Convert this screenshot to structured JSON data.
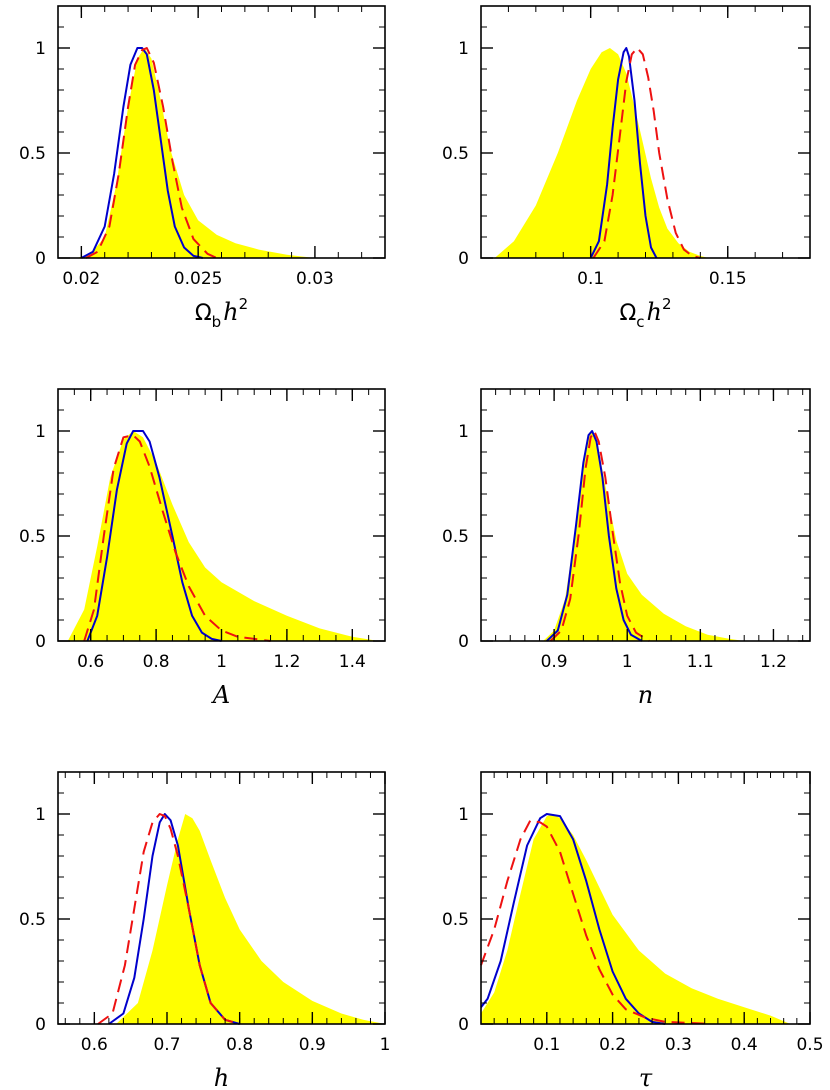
{
  "colors": {
    "fill": "#ffff00",
    "solid_line": "#0000cc",
    "dashed_line": "#ee1111",
    "axis": "#000000"
  },
  "chart_data": [
    {
      "type": "area",
      "xlabel": {
        "main": "Ω",
        "sub": "b",
        "var": "h",
        "sup": "2"
      },
      "xlim": [
        0.019,
        0.033
      ],
      "ylim": [
        0,
        1.2
      ],
      "x_ticks": [
        0.02,
        0.025,
        0.03
      ],
      "x_tick_labels": [
        "0.02",
        "0.025",
        "0.03"
      ],
      "x_minor_step": 0.001,
      "y_ticks": [
        0,
        0.5,
        1
      ],
      "y_tick_labels": [
        "0",
        "0.5",
        "1"
      ],
      "y_minor_step": 0.1,
      "series": [
        {
          "style": "fill",
          "x": [
            0.0198,
            0.0204,
            0.021,
            0.0215,
            0.022,
            0.0224,
            0.0227,
            0.023,
            0.0234,
            0.0238,
            0.0244,
            0.025,
            0.0258,
            0.0266,
            0.0276,
            0.0288,
            0.03
          ],
          "y": [
            0,
            0.02,
            0.1,
            0.35,
            0.72,
            0.95,
            1.0,
            0.95,
            0.75,
            0.52,
            0.3,
            0.18,
            0.11,
            0.07,
            0.04,
            0.015,
            0
          ]
        },
        {
          "style": "solid",
          "x": [
            0.02,
            0.0205,
            0.021,
            0.0214,
            0.0218,
            0.0221,
            0.0224,
            0.0226,
            0.0228,
            0.0231,
            0.0234,
            0.0237,
            0.024,
            0.0244,
            0.0248,
            0.0252
          ],
          "y": [
            0,
            0.03,
            0.15,
            0.4,
            0.72,
            0.92,
            1.0,
            1.0,
            0.97,
            0.8,
            0.56,
            0.32,
            0.15,
            0.05,
            0.01,
            0
          ]
        },
        {
          "style": "dashed",
          "x": [
            0.0202,
            0.0207,
            0.0212,
            0.0216,
            0.022,
            0.0223,
            0.0226,
            0.0228,
            0.0231,
            0.0235,
            0.0239,
            0.0243,
            0.0248,
            0.0254,
            0.0258
          ],
          "y": [
            0,
            0.03,
            0.15,
            0.4,
            0.72,
            0.92,
            0.99,
            1.0,
            0.93,
            0.72,
            0.46,
            0.24,
            0.09,
            0.02,
            0
          ]
        }
      ]
    },
    {
      "type": "area",
      "xlabel": {
        "main": "Ω",
        "sub": "c",
        "var": "h",
        "sup": "2"
      },
      "xlim": [
        0.06,
        0.18
      ],
      "ylim": [
        0,
        1.2
      ],
      "x_ticks": [
        0.1,
        0.15
      ],
      "x_tick_labels": [
        "0.1",
        "0.15"
      ],
      "x_minor_step": 0.01,
      "y_ticks": [
        0,
        0.5,
        1
      ],
      "y_tick_labels": [
        "0",
        "0.5",
        "1"
      ],
      "y_minor_step": 0.1,
      "series": [
        {
          "style": "fill",
          "x": [
            0.065,
            0.072,
            0.08,
            0.088,
            0.095,
            0.1,
            0.104,
            0.107,
            0.11,
            0.113,
            0.116,
            0.119,
            0.122,
            0.125,
            0.128,
            0.132,
            0.136,
            0.14,
            0.143
          ],
          "y": [
            0,
            0.08,
            0.25,
            0.5,
            0.75,
            0.9,
            0.98,
            1.0,
            0.97,
            0.88,
            0.72,
            0.55,
            0.38,
            0.24,
            0.14,
            0.07,
            0.03,
            0.01,
            0
          ]
        },
        {
          "style": "solid",
          "x": [
            0.1,
            0.103,
            0.106,
            0.108,
            0.11,
            0.112,
            0.113,
            0.114,
            0.116,
            0.118,
            0.12,
            0.122,
            0.124
          ],
          "y": [
            0,
            0.08,
            0.35,
            0.62,
            0.85,
            0.98,
            1.0,
            0.96,
            0.75,
            0.45,
            0.2,
            0.05,
            0
          ]
        },
        {
          "style": "dashed",
          "x": [
            0.101,
            0.105,
            0.108,
            0.111,
            0.113,
            0.115,
            0.117,
            0.119,
            0.121,
            0.123,
            0.125,
            0.128,
            0.131,
            0.134,
            0.137,
            0.14
          ],
          "y": [
            0,
            0.08,
            0.3,
            0.62,
            0.84,
            0.97,
            1.0,
            0.97,
            0.86,
            0.7,
            0.5,
            0.28,
            0.12,
            0.04,
            0.01,
            0
          ]
        }
      ]
    },
    {
      "type": "area",
      "xlabel": {
        "var": "A"
      },
      "xlim": [
        0.5,
        1.5
      ],
      "ylim": [
        0,
        1.2
      ],
      "x_ticks": [
        0.6,
        0.8,
        1,
        1.2,
        1.4
      ],
      "x_tick_labels": [
        "0.6",
        "0.8",
        "1",
        "1.2",
        "1.4"
      ],
      "x_minor_step": 0.05,
      "y_ticks": [
        0,
        0.5,
        1
      ],
      "y_tick_labels": [
        "0",
        "0.5",
        "1"
      ],
      "y_minor_step": 0.1,
      "series": [
        {
          "style": "fill",
          "x": [
            0.53,
            0.58,
            0.62,
            0.66,
            0.7,
            0.73,
            0.76,
            0.8,
            0.85,
            0.9,
            0.95,
            1.0,
            1.1,
            1.2,
            1.3,
            1.4,
            1.48
          ],
          "y": [
            0,
            0.15,
            0.45,
            0.78,
            0.96,
            1.0,
            0.97,
            0.85,
            0.65,
            0.47,
            0.35,
            0.28,
            0.19,
            0.12,
            0.06,
            0.02,
            0
          ]
        },
        {
          "style": "solid",
          "x": [
            0.59,
            0.62,
            0.65,
            0.68,
            0.71,
            0.73,
            0.76,
            0.78,
            0.81,
            0.85,
            0.88,
            0.91,
            0.94,
            0.97,
            1.0
          ],
          "y": [
            0,
            0.12,
            0.4,
            0.72,
            0.94,
            1.0,
            1.0,
            0.95,
            0.78,
            0.5,
            0.28,
            0.12,
            0.04,
            0.01,
            0
          ]
        },
        {
          "style": "dashed",
          "x": [
            0.58,
            0.61,
            0.64,
            0.67,
            0.7,
            0.73,
            0.75,
            0.78,
            0.82,
            0.86,
            0.9,
            0.95,
            1.0,
            1.05,
            1.1,
            1.15
          ],
          "y": [
            0,
            0.15,
            0.5,
            0.82,
            0.97,
            0.98,
            0.95,
            0.83,
            0.62,
            0.42,
            0.26,
            0.12,
            0.05,
            0.02,
            0.01,
            0
          ]
        }
      ]
    },
    {
      "type": "area",
      "xlabel": {
        "var": "n"
      },
      "xlim": [
        0.8,
        1.25
      ],
      "ylim": [
        0,
        1.2
      ],
      "x_ticks": [
        0.9,
        1,
        1.1,
        1.2
      ],
      "x_tick_labels": [
        "0.9",
        "1",
        "1.1",
        "1.2"
      ],
      "x_minor_step": 0.02,
      "y_ticks": [
        0,
        0.5,
        1
      ],
      "y_tick_labels": [
        "0",
        "0.5",
        "1"
      ],
      "y_minor_step": 0.1,
      "series": [
        {
          "style": "fill",
          "x": [
            0.885,
            0.9,
            0.915,
            0.93,
            0.94,
            0.948,
            0.953,
            0.96,
            0.97,
            0.985,
            1.0,
            1.02,
            1.05,
            1.08,
            1.11,
            1.14,
            1.16
          ],
          "y": [
            0,
            0.05,
            0.2,
            0.55,
            0.85,
            0.98,
            1.0,
            0.93,
            0.74,
            0.48,
            0.32,
            0.22,
            0.13,
            0.07,
            0.03,
            0.01,
            0
          ]
        },
        {
          "style": "solid",
          "x": [
            0.89,
            0.905,
            0.918,
            0.93,
            0.94,
            0.947,
            0.952,
            0.958,
            0.966,
            0.975,
            0.985,
            0.995,
            1.005,
            1.02
          ],
          "y": [
            0,
            0.05,
            0.22,
            0.55,
            0.85,
            0.98,
            1.0,
            0.95,
            0.78,
            0.5,
            0.25,
            0.1,
            0.03,
            0
          ]
        },
        {
          "style": "dashed",
          "x": [
            0.895,
            0.91,
            0.922,
            0.934,
            0.943,
            0.95,
            0.955,
            0.961,
            0.97,
            0.98,
            0.99,
            1.0,
            1.012,
            1.03
          ],
          "y": [
            0,
            0.05,
            0.2,
            0.52,
            0.82,
            0.97,
            1.0,
            0.95,
            0.78,
            0.52,
            0.28,
            0.12,
            0.04,
            0
          ]
        }
      ]
    },
    {
      "type": "area",
      "xlabel": {
        "var": "h"
      },
      "xlim": [
        0.55,
        1.0
      ],
      "ylim": [
        0,
        1.2
      ],
      "x_ticks": [
        0.6,
        0.7,
        0.8,
        0.9,
        1
      ],
      "x_tick_labels": [
        "0.6",
        "0.7",
        "0.8",
        "0.9",
        "1"
      ],
      "x_minor_step": 0.02,
      "y_ticks": [
        0,
        0.5,
        1
      ],
      "y_tick_labels": [
        "0",
        "0.5",
        "1"
      ],
      "y_minor_step": 0.1,
      "series": [
        {
          "style": "fill",
          "x": [
            0.63,
            0.66,
            0.68,
            0.7,
            0.715,
            0.725,
            0.735,
            0.745,
            0.76,
            0.78,
            0.8,
            0.83,
            0.86,
            0.9,
            0.94,
            0.97,
            1.0
          ],
          "y": [
            0,
            0.1,
            0.35,
            0.66,
            0.88,
            1.0,
            0.98,
            0.92,
            0.78,
            0.6,
            0.45,
            0.3,
            0.2,
            0.11,
            0.05,
            0.02,
            0
          ]
        },
        {
          "style": "solid",
          "x": [
            0.62,
            0.64,
            0.655,
            0.668,
            0.68,
            0.69,
            0.697,
            0.705,
            0.715,
            0.73,
            0.745,
            0.76,
            0.78,
            0.8
          ],
          "y": [
            0,
            0.05,
            0.22,
            0.5,
            0.8,
            0.96,
            1.0,
            0.97,
            0.85,
            0.55,
            0.28,
            0.1,
            0.02,
            0
          ]
        },
        {
          "style": "dashed",
          "x": [
            0.605,
            0.625,
            0.642,
            0.655,
            0.668,
            0.68,
            0.69,
            0.697,
            0.705,
            0.715,
            0.73,
            0.745,
            0.76,
            0.78,
            0.8
          ],
          "y": [
            0,
            0.05,
            0.28,
            0.55,
            0.82,
            0.96,
            1.0,
            0.99,
            0.93,
            0.8,
            0.55,
            0.28,
            0.1,
            0.02,
            0
          ]
        }
      ]
    },
    {
      "type": "area",
      "xlabel": {
        "var": "τ"
      },
      "xlim": [
        0.0,
        0.5
      ],
      "ylim": [
        0,
        1.2
      ],
      "x_ticks": [
        0.1,
        0.2,
        0.3,
        0.4,
        0.5
      ],
      "x_tick_labels": [
        "0.1",
        "0.2",
        "0.3",
        "0.4",
        "0.5"
      ],
      "x_minor_step": 0.02,
      "y_ticks": [
        0,
        0.5,
        1
      ],
      "y_tick_labels": [
        "0",
        "0.5",
        "1"
      ],
      "y_minor_step": 0.1,
      "series": [
        {
          "style": "fill",
          "x": [
            0.0,
            0.02,
            0.04,
            0.06,
            0.08,
            0.1,
            0.11,
            0.12,
            0.14,
            0.16,
            0.18,
            0.2,
            0.24,
            0.28,
            0.32,
            0.36,
            0.4,
            0.44,
            0.47
          ],
          "y": [
            0.05,
            0.15,
            0.35,
            0.62,
            0.88,
            0.99,
            1.0,
            0.98,
            0.9,
            0.78,
            0.65,
            0.52,
            0.35,
            0.24,
            0.17,
            0.12,
            0.08,
            0.04,
            0
          ]
        },
        {
          "style": "solid",
          "x": [
            0.0,
            0.01,
            0.03,
            0.05,
            0.07,
            0.09,
            0.1,
            0.12,
            0.14,
            0.16,
            0.18,
            0.2,
            0.22,
            0.24,
            0.26,
            0.28
          ],
          "y": [
            0.08,
            0.12,
            0.3,
            0.58,
            0.85,
            0.98,
            1.0,
            0.99,
            0.88,
            0.68,
            0.45,
            0.25,
            0.12,
            0.05,
            0.01,
            0
          ]
        },
        {
          "style": "dashed",
          "x": [
            0.0,
            0.02,
            0.04,
            0.06,
            0.075,
            0.09,
            0.1,
            0.12,
            0.14,
            0.16,
            0.18,
            0.2,
            0.22,
            0.25,
            0.28,
            0.32,
            0.35
          ],
          "y": [
            0.28,
            0.45,
            0.68,
            0.88,
            0.97,
            0.96,
            0.94,
            0.82,
            0.62,
            0.42,
            0.26,
            0.14,
            0.07,
            0.03,
            0.01,
            0.005,
            0
          ]
        }
      ]
    }
  ]
}
